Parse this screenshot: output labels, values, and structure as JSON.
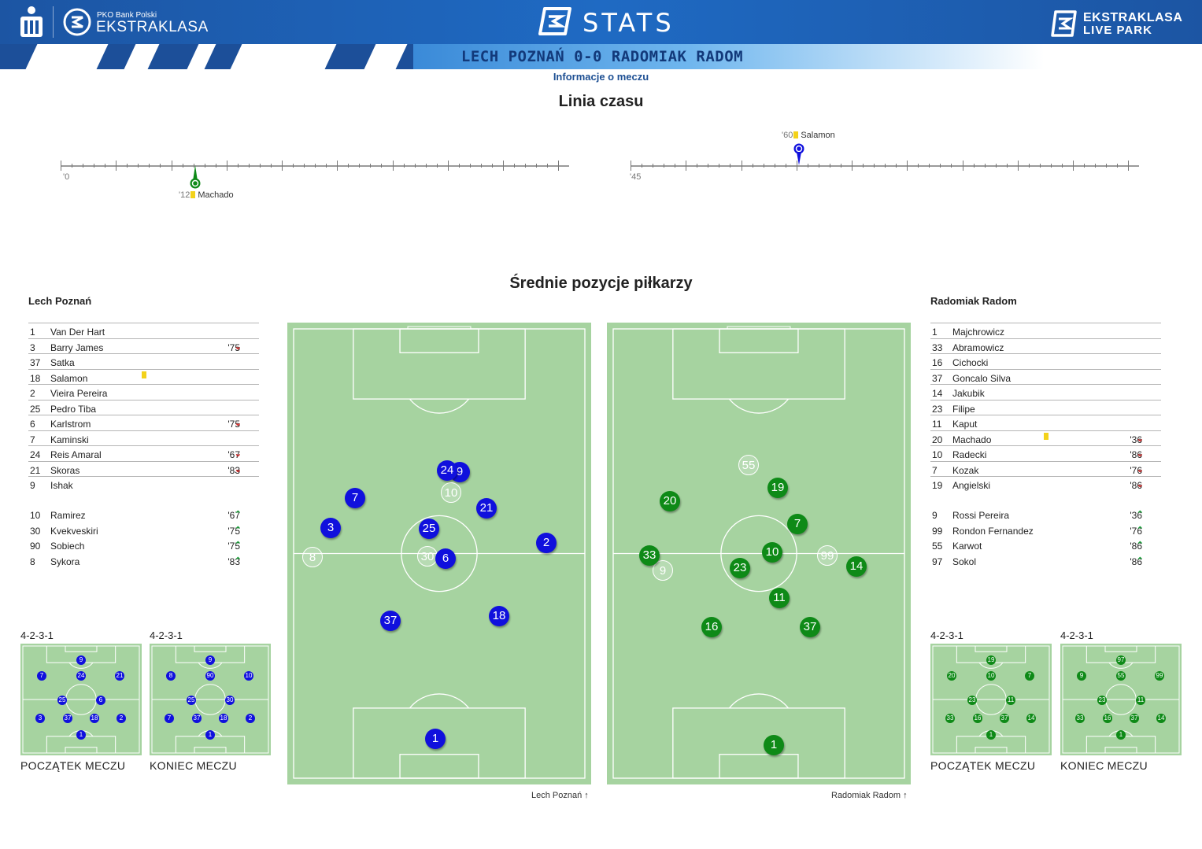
{
  "header": {
    "sponsor_small": "PKO Bank Polski",
    "league": "EKSTRAKLASA",
    "stats": "STATS",
    "liveparks_top": "EKSTRAKLASA",
    "liveparks_bottom": "LIVE PARK",
    "score_line": "LECH POZNAŃ 0-0 RADOMIAK RADOM",
    "colors": {
      "primary": "#1c55a3",
      "score_text": "#12397a"
    }
  },
  "info_link": "Informacje o meczu",
  "timeline": {
    "title": "Linia czasu",
    "half1_start": "'0",
    "half2_start": "'45",
    "events": [
      {
        "minute": "'12",
        "player": "Machado",
        "half": 1,
        "team": "radomiak",
        "marker_color": "#0e8a17",
        "card": "yellow"
      },
      {
        "minute": "'60",
        "player": "Salamon",
        "half": 2,
        "team": "lech",
        "marker_color": "#1010dd",
        "card": "yellow"
      }
    ]
  },
  "positions_title": "Średnie pozycje piłkarzy",
  "home": {
    "name": "Lech Poznań",
    "color": "#1010dd",
    "starters": [
      {
        "num": "1",
        "name": "Van Der Hart",
        "sub": "",
        "sub_dir": ""
      },
      {
        "num": "3",
        "name": "Barry James",
        "sub": "'75",
        "sub_dir": "out"
      },
      {
        "num": "37",
        "name": "Satka",
        "sub": "",
        "sub_dir": ""
      },
      {
        "num": "18",
        "name": "Salamon",
        "sub": "",
        "sub_dir": "",
        "card": "yellow"
      },
      {
        "num": "2",
        "name": "Vieira Pereira",
        "sub": "",
        "sub_dir": ""
      },
      {
        "num": "25",
        "name": "Pedro Tiba",
        "sub": "",
        "sub_dir": ""
      },
      {
        "num": "6",
        "name": "Karlstrom",
        "sub": "'75",
        "sub_dir": "out"
      },
      {
        "num": "7",
        "name": "Kaminski",
        "sub": "",
        "sub_dir": ""
      },
      {
        "num": "24",
        "name": "Reis Amaral",
        "sub": "'67",
        "sub_dir": "out"
      },
      {
        "num": "21",
        "name": "Skoras",
        "sub": "'83",
        "sub_dir": "out"
      },
      {
        "num": "9",
        "name": "Ishak",
        "sub": "",
        "sub_dir": ""
      }
    ],
    "subs": [
      {
        "num": "10",
        "name": "Ramirez",
        "sub": "'67",
        "sub_dir": "in"
      },
      {
        "num": "30",
        "name": "Kvekveskiri",
        "sub": "'75",
        "sub_dir": "in"
      },
      {
        "num": "90",
        "name": "Sobiech",
        "sub": "'75",
        "sub_dir": "in"
      },
      {
        "num": "8",
        "name": "Sykora",
        "sub": "'83",
        "sub_dir": "in"
      }
    ],
    "pitch_caption": "Lech Poznań",
    "formation_start": "4-2-3-1",
    "formation_end": "4-2-3-1",
    "start_caption": "POCZĄTEK MECZU",
    "end_caption": "KONIEC MECZU"
  },
  "away": {
    "name": "Radomiak Radom",
    "color": "#0e8a17",
    "starters": [
      {
        "num": "1",
        "name": "Majchrowicz",
        "sub": "",
        "sub_dir": ""
      },
      {
        "num": "33",
        "name": "Abramowicz",
        "sub": "",
        "sub_dir": ""
      },
      {
        "num": "16",
        "name": "Cichocki",
        "sub": "",
        "sub_dir": ""
      },
      {
        "num": "37",
        "name": "Goncalo Silva",
        "sub": "",
        "sub_dir": ""
      },
      {
        "num": "14",
        "name": "Jakubik",
        "sub": "",
        "sub_dir": ""
      },
      {
        "num": "23",
        "name": "Filipe",
        "sub": "",
        "sub_dir": ""
      },
      {
        "num": "11",
        "name": "Kaput",
        "sub": "",
        "sub_dir": ""
      },
      {
        "num": "20",
        "name": "Machado",
        "sub": "'36",
        "sub_dir": "out",
        "card": "yellow"
      },
      {
        "num": "10",
        "name": "Radecki",
        "sub": "'86",
        "sub_dir": "out"
      },
      {
        "num": "7",
        "name": "Kozak",
        "sub": "'76",
        "sub_dir": "out"
      },
      {
        "num": "19",
        "name": "Angielski",
        "sub": "'86",
        "sub_dir": "out"
      }
    ],
    "subs": [
      {
        "num": "9",
        "name": "Rossi Pereira",
        "sub": "'36",
        "sub_dir": "in"
      },
      {
        "num": "99",
        "name": "Rondon Fernandez",
        "sub": "'76",
        "sub_dir": "in"
      },
      {
        "num": "55",
        "name": "Karwot",
        "sub": "'86",
        "sub_dir": "in"
      },
      {
        "num": "97",
        "name": "Sokol",
        "sub": "'86",
        "sub_dir": "in"
      }
    ],
    "pitch_caption": "Radomiak Radom",
    "formation_start": "4-2-3-1",
    "formation_end": "4-2-3-1",
    "start_caption": "POCZĄTEK MECZU",
    "end_caption": "KONIEC MECZU"
  }
}
